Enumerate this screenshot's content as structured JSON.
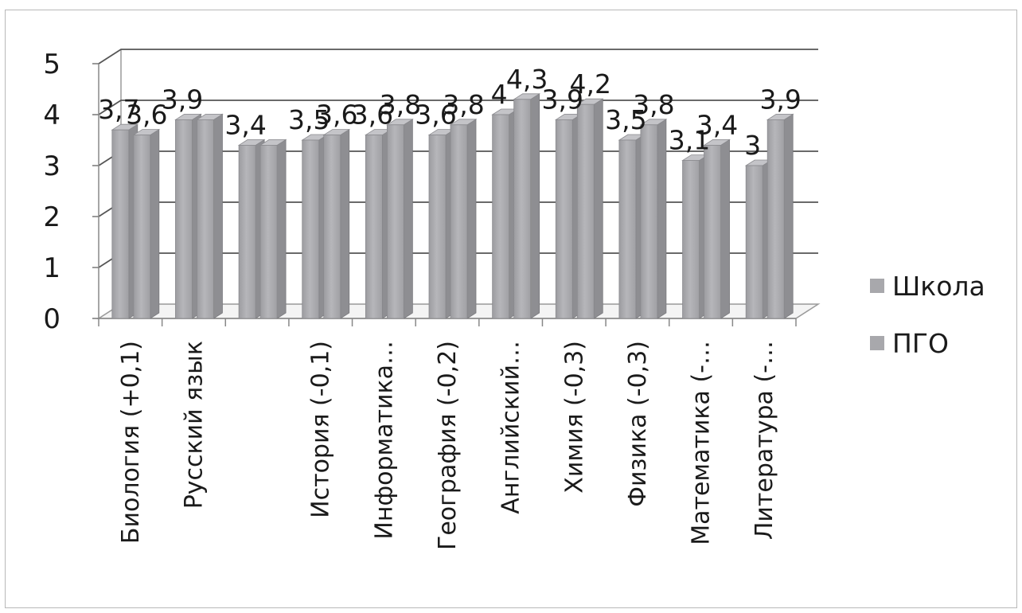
{
  "chart_data": {
    "type": "bar",
    "title": "",
    "xlabel": "",
    "ylabel": "",
    "ylim": [
      0,
      5
    ],
    "yticks": [
      "0",
      "1",
      "2",
      "3",
      "4",
      "5"
    ],
    "grid": true,
    "legend_position": "right",
    "categories": [
      "Биология (+0,1)",
      "Русский язык",
      "",
      "История (-0,1)",
      "Информатика…",
      "География (-0,2)",
      "Английский…",
      "Химия (-0,3)",
      "Физика (-0,3)",
      "Математика (-…",
      "Литература (-…"
    ],
    "series": [
      {
        "name": "Школа",
        "color": "#a8a8ac",
        "values": [
          3.7,
          3.9,
          3.4,
          3.5,
          3.6,
          3.6,
          4.0,
          3.9,
          3.5,
          3.1,
          3.0
        ],
        "labels": [
          "3,7",
          "3,9",
          "3,4",
          "3,5",
          "3,6",
          "3,6",
          "4",
          "3,9",
          "3,5",
          "3,1",
          "3"
        ]
      },
      {
        "name": "ПГО",
        "color": "#a8a8ac",
        "values": [
          3.6,
          3.9,
          3.4,
          3.6,
          3.8,
          3.8,
          4.3,
          4.2,
          3.8,
          3.4,
          3.9
        ],
        "labels": [
          "3,6",
          "",
          "",
          "3,6",
          "3,8",
          "3,8",
          "4,3",
          "4,2",
          "3,8",
          "3,4",
          "3,9"
        ]
      }
    ]
  }
}
